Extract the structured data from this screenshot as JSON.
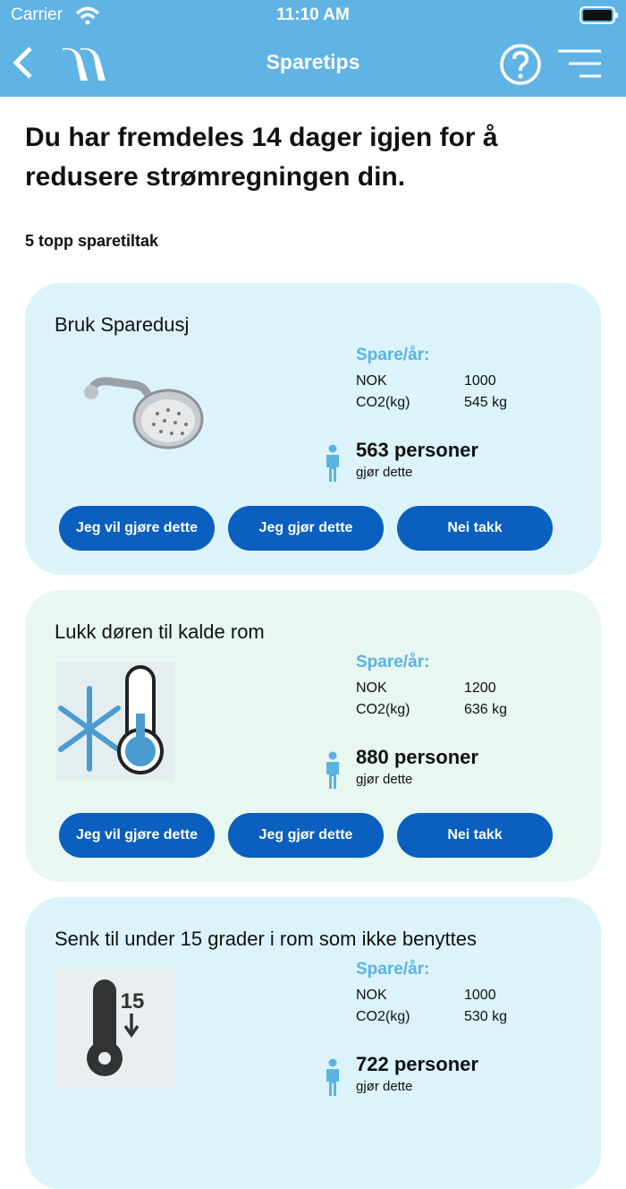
{
  "status_bar": {
    "carrier": "Carrier",
    "time": "11:10 AM"
  },
  "nav": {
    "title": "Sparetips"
  },
  "heading": "Du har fremdeles 14 dager igjen for å redusere strømregningen din.",
  "subheading": "5 topp sparetiltak",
  "cards": [
    {
      "title": "Bruk Sparedusj",
      "icon": "shower",
      "savings_label": "Spare/år:",
      "rows": [
        [
          "NOK",
          "1000"
        ],
        [
          "CO2(kg)",
          "545 kg"
        ]
      ],
      "persons": "563 personer",
      "persons_note": "gjør dette",
      "buttons": [
        "Jeg vil gjøre dette",
        "Jeg gjør dette",
        "Nei takk"
      ]
    },
    {
      "title": "Lukk døren til kalde rom",
      "icon": "cold",
      "savings_label": "Spare/år:",
      "rows": [
        [
          "NOK",
          "1200"
        ],
        [
          "CO2(kg)",
          "636 kg"
        ]
      ],
      "persons": "880 personer",
      "persons_note": "gjør dette",
      "buttons": [
        "Jeg vil gjøre dette",
        "Jeg gjør dette",
        "Nei takk"
      ]
    },
    {
      "title": "Senk til under 15 grader i rom som ikke benyttes",
      "icon": "thermo",
      "icon_text": "15",
      "savings_label": "Spare/år:",
      "rows": [
        [
          "NOK",
          "1000"
        ],
        [
          "CO2(kg)",
          "530 kg"
        ]
      ],
      "persons": "722 personer",
      "persons_note": "gjør dette"
    }
  ]
}
